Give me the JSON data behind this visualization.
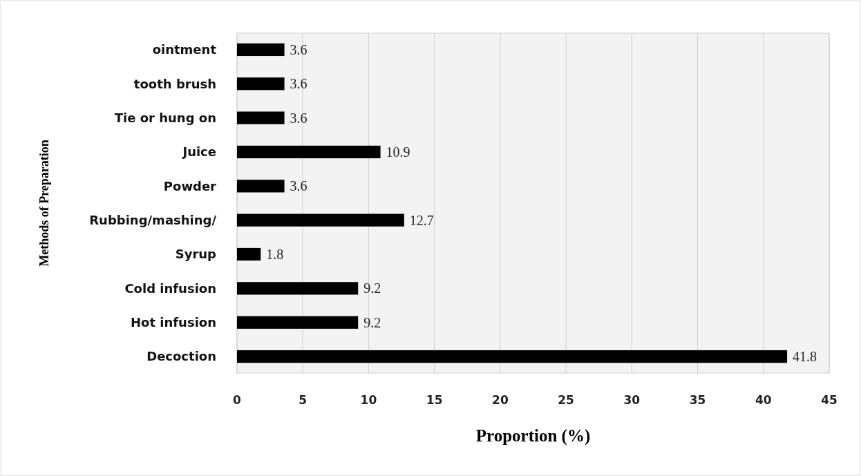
{
  "chart_data": {
    "type": "bar",
    "orientation": "horizontal",
    "xlabel": "Proportion (%)",
    "ylabel": "Methods of Preparation",
    "categories": [
      "ointment",
      "tooth brush",
      "Tie or hung on",
      "Juice",
      "Powder",
      "Rubbing/mashing/",
      "Syrup",
      "Cold infusion",
      "Hot infusion",
      "Decoction"
    ],
    "values": [
      3.6,
      3.6,
      3.6,
      10.9,
      3.6,
      12.7,
      1.8,
      9.2,
      9.2,
      41.8
    ],
    "color": "#000000",
    "xlim": [
      0,
      45
    ],
    "xticks": [
      0,
      5,
      10,
      15,
      20,
      25,
      30,
      35,
      40,
      45
    ],
    "grid": "x",
    "data_labels": true
  }
}
